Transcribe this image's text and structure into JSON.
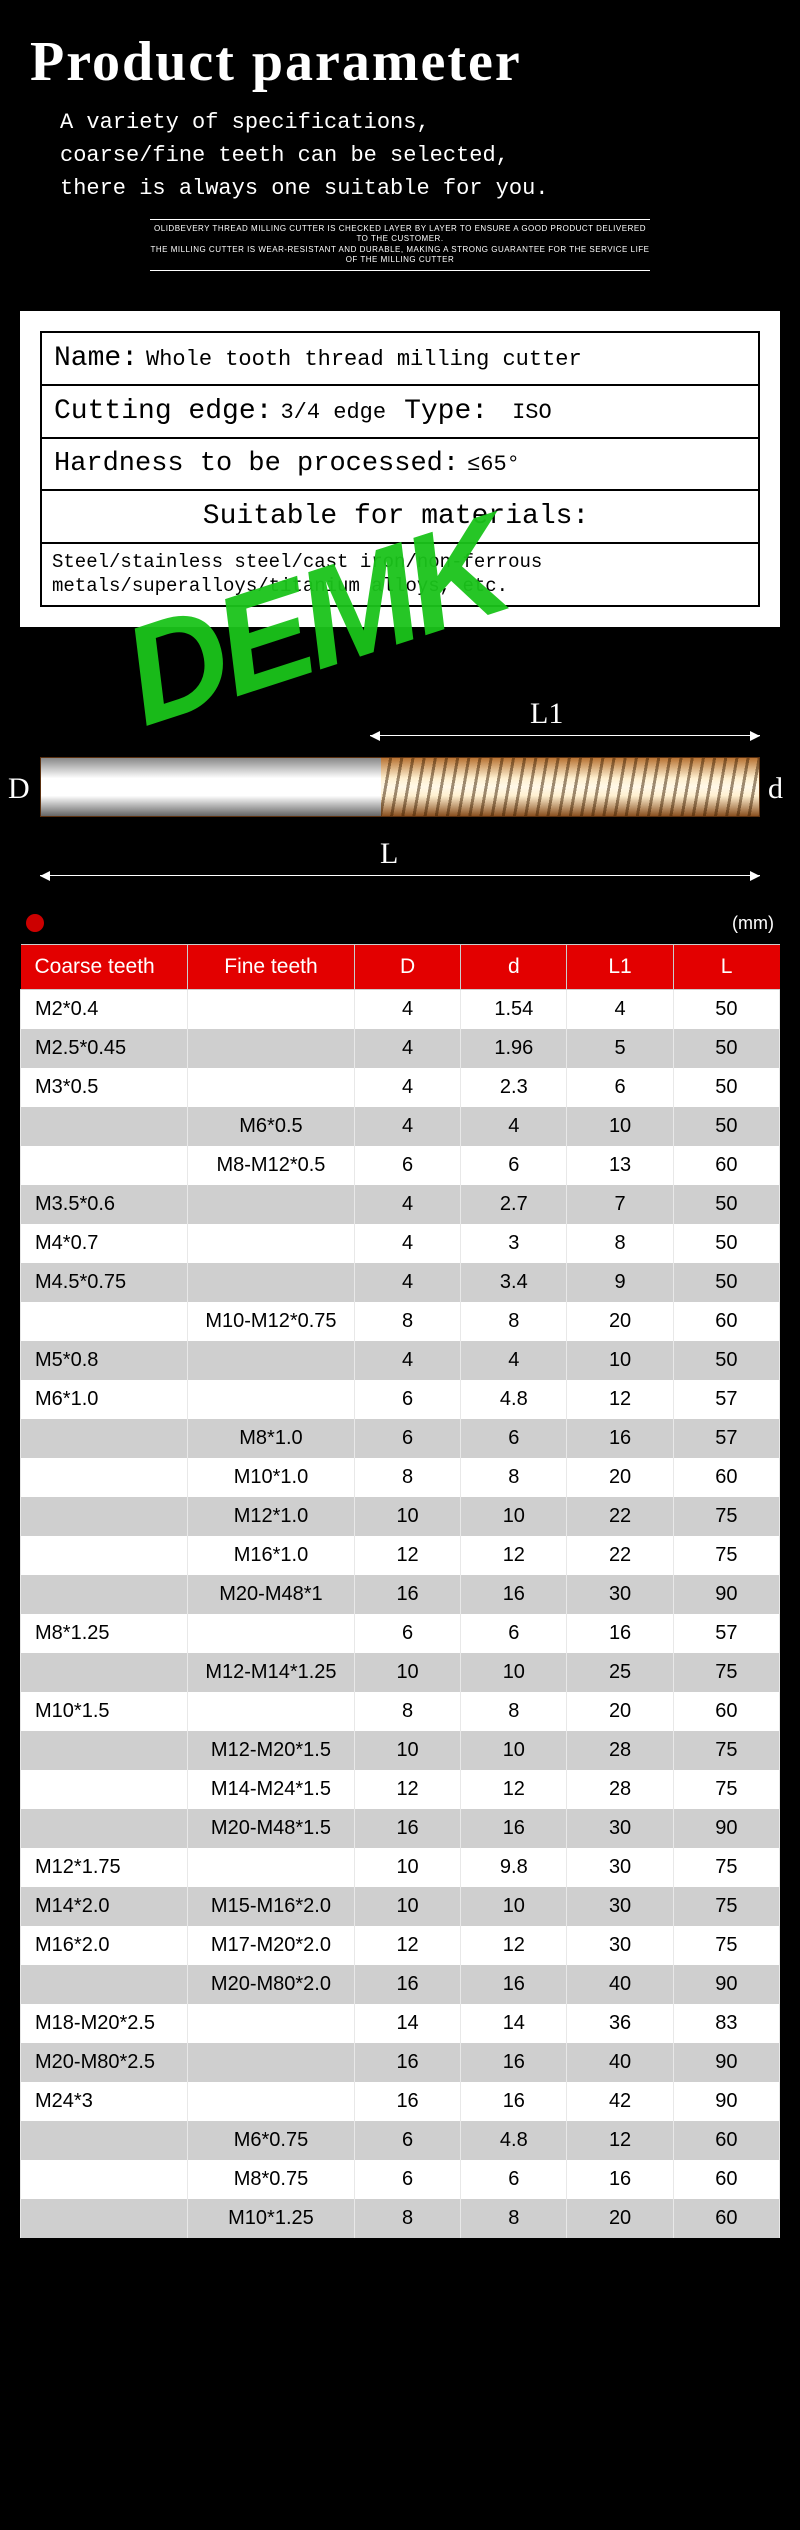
{
  "header": {
    "title": "Product parameter",
    "subtitle": "A variety of specifications,\ncoarse/fine teeth can be selected,\nthere is always one suitable for you.",
    "smallprint": "OLIDBEVERY THREAD MILLING CUTTER IS CHECKED LAYER BY LAYER TO ENSURE A GOOD PRODUCT DELIVERED TO THE CUSTOMER.\nTHE MILLING CUTTER IS WEAR-RESISTANT AND DURABLE, MAKING A STRONG GUARANTEE FOR THE SERVICE LIFE OF THE MILLING CUTTER"
  },
  "watermark": "DEMK",
  "spec": {
    "name_label": "Name:",
    "name_value": "Whole tooth thread milling cutter",
    "cutting_edge_label": "Cutting edge:",
    "cutting_edge_value": "3/4 edge",
    "type_label": "Type:",
    "type_value": "ISO",
    "hardness_label": "Hardness to be processed:",
    "hardness_value": "≤65°",
    "materials_label": "Suitable for materials:",
    "materials_value": "Steel/stainless steel/cast iron/non-ferrous metals/superalloys/titanium alloys, etc."
  },
  "diagram": {
    "D": "D",
    "d": "d",
    "L1": "L1",
    "L": "L"
  },
  "table": {
    "unit": "(mm)",
    "columns": [
      "Coarse teeth",
      "Fine teeth",
      "D",
      "d",
      "L1",
      "L"
    ],
    "rows": [
      [
        "M2*0.4",
        "",
        "4",
        "1.54",
        "4",
        "50"
      ],
      [
        "M2.5*0.45",
        "",
        "4",
        "1.96",
        "5",
        "50"
      ],
      [
        "M3*0.5",
        "",
        "4",
        "2.3",
        "6",
        "50"
      ],
      [
        "",
        "M6*0.5",
        "4",
        "4",
        "10",
        "50"
      ],
      [
        "",
        "M8-M12*0.5",
        "6",
        "6",
        "13",
        "60"
      ],
      [
        "M3.5*0.6",
        "",
        "4",
        "2.7",
        "7",
        "50"
      ],
      [
        "M4*0.7",
        "",
        "4",
        "3",
        "8",
        "50"
      ],
      [
        "M4.5*0.75",
        "",
        "4",
        "3.4",
        "9",
        "50"
      ],
      [
        "",
        "M10-M12*0.75",
        "8",
        "8",
        "20",
        "60"
      ],
      [
        "M5*0.8",
        "",
        "4",
        "4",
        "10",
        "50"
      ],
      [
        "M6*1.0",
        "",
        "6",
        "4.8",
        "12",
        "57"
      ],
      [
        "",
        "M8*1.0",
        "6",
        "6",
        "16",
        "57"
      ],
      [
        "",
        "M10*1.0",
        "8",
        "8",
        "20",
        "60"
      ],
      [
        "",
        "M12*1.0",
        "10",
        "10",
        "22",
        "75"
      ],
      [
        "",
        "M16*1.0",
        "12",
        "12",
        "22",
        "75"
      ],
      [
        "",
        "M20-M48*1",
        "16",
        "16",
        "30",
        "90"
      ],
      [
        "M8*1.25",
        "",
        "6",
        "6",
        "16",
        "57"
      ],
      [
        "",
        "M12-M14*1.25",
        "10",
        "10",
        "25",
        "75"
      ],
      [
        "M10*1.5",
        "",
        "8",
        "8",
        "20",
        "60"
      ],
      [
        "",
        "M12-M20*1.5",
        "10",
        "10",
        "28",
        "75"
      ],
      [
        "",
        "M14-M24*1.5",
        "12",
        "12",
        "28",
        "75"
      ],
      [
        "",
        "M20-M48*1.5",
        "16",
        "16",
        "30",
        "90"
      ],
      [
        "M12*1.75",
        "",
        "10",
        "9.8",
        "30",
        "75"
      ],
      [
        "M14*2.0",
        "M15-M16*2.0",
        "10",
        "10",
        "30",
        "75"
      ],
      [
        "M16*2.0",
        "M17-M20*2.0",
        "12",
        "12",
        "30",
        "75"
      ],
      [
        "",
        "M20-M80*2.0",
        "16",
        "16",
        "40",
        "90"
      ],
      [
        "M18-M20*2.5",
        "",
        "14",
        "14",
        "36",
        "83"
      ],
      [
        "M20-M80*2.5",
        "",
        "16",
        "16",
        "40",
        "90"
      ],
      [
        "M24*3",
        "",
        "16",
        "16",
        "42",
        "90"
      ],
      [
        "",
        "M6*0.75",
        "6",
        "4.8",
        "12",
        "60"
      ],
      [
        "",
        "M8*0.75",
        "6",
        "6",
        "16",
        "60"
      ],
      [
        "",
        "M10*1.25",
        "8",
        "8",
        "20",
        "60"
      ]
    ],
    "alt_rows": [
      1,
      3,
      5,
      7,
      9,
      11,
      13,
      15,
      17,
      19,
      21,
      23,
      25,
      27,
      29,
      31
    ]
  }
}
